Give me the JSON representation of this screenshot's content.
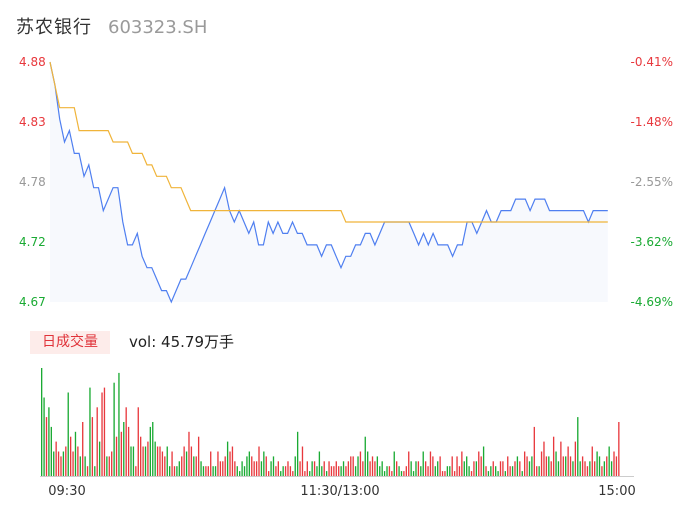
{
  "header": {
    "name": "苏农银行",
    "code": "603323.SH"
  },
  "volume_panel": {
    "tag": "日成交量",
    "label": "vol: 45.79万手"
  },
  "colors": {
    "price_line": "#4f7ff0",
    "avg_line": "#f0b43a",
    "up": "#e8383d",
    "down": "#1aaa33",
    "neutral": "#999999",
    "area_fill": "#f7f9fd"
  },
  "chart_data": [
    {
      "type": "line",
      "title": "",
      "ylim": [
        4.67,
        4.88
      ],
      "y_ticks": [
        "4.88",
        "4.83",
        "4.78",
        "4.72",
        "4.67"
      ],
      "y2_ticks": [
        "-0.41%",
        "-1.48%",
        "-2.55%",
        "-3.62%",
        "-4.69%"
      ],
      "x_ticks": [
        "09:30",
        "11:30/13:00",
        "15:00"
      ],
      "session_minutes": 240,
      "series": [
        {
          "key": "price",
          "points": [
            [
              0,
              4.88
            ],
            [
              2,
              4.86
            ],
            [
              4,
              4.83
            ],
            [
              6,
              4.81
            ],
            [
              8,
              4.82
            ],
            [
              10,
              4.8
            ],
            [
              12,
              4.8
            ],
            [
              14,
              4.78
            ],
            [
              16,
              4.79
            ],
            [
              18,
              4.77
            ],
            [
              20,
              4.77
            ],
            [
              22,
              4.75
            ],
            [
              24,
              4.76
            ],
            [
              26,
              4.77
            ],
            [
              28,
              4.77
            ],
            [
              30,
              4.74
            ],
            [
              32,
              4.72
            ],
            [
              34,
              4.72
            ],
            [
              36,
              4.73
            ],
            [
              38,
              4.71
            ],
            [
              40,
              4.7
            ],
            [
              42,
              4.7
            ],
            [
              44,
              4.69
            ],
            [
              46,
              4.68
            ],
            [
              48,
              4.68
            ],
            [
              50,
              4.67
            ],
            [
              52,
              4.68
            ],
            [
              54,
              4.69
            ],
            [
              56,
              4.69
            ],
            [
              58,
              4.7
            ],
            [
              60,
              4.71
            ],
            [
              62,
              4.72
            ],
            [
              64,
              4.73
            ],
            [
              66,
              4.74
            ],
            [
              68,
              4.75
            ],
            [
              70,
              4.76
            ],
            [
              72,
              4.77
            ],
            [
              74,
              4.75
            ],
            [
              76,
              4.74
            ],
            [
              78,
              4.75
            ],
            [
              80,
              4.74
            ],
            [
              82,
              4.73
            ],
            [
              84,
              4.74
            ],
            [
              86,
              4.72
            ],
            [
              88,
              4.72
            ],
            [
              90,
              4.74
            ],
            [
              92,
              4.73
            ],
            [
              94,
              4.74
            ],
            [
              96,
              4.73
            ],
            [
              98,
              4.73
            ],
            [
              100,
              4.74
            ],
            [
              102,
              4.73
            ],
            [
              104,
              4.73
            ],
            [
              106,
              4.72
            ],
            [
              108,
              4.72
            ],
            [
              110,
              4.72
            ],
            [
              112,
              4.71
            ],
            [
              114,
              4.72
            ],
            [
              116,
              4.72
            ],
            [
              118,
              4.71
            ],
            [
              120,
              4.7
            ],
            [
              122,
              4.71
            ],
            [
              124,
              4.71
            ],
            [
              126,
              4.72
            ],
            [
              128,
              4.72
            ],
            [
              130,
              4.73
            ],
            [
              132,
              4.73
            ],
            [
              134,
              4.72
            ],
            [
              136,
              4.73
            ],
            [
              138,
              4.74
            ],
            [
              140,
              4.74
            ],
            [
              142,
              4.74
            ],
            [
              144,
              4.74
            ],
            [
              146,
              4.74
            ],
            [
              148,
              4.74
            ],
            [
              150,
              4.73
            ],
            [
              152,
              4.72
            ],
            [
              154,
              4.73
            ],
            [
              156,
              4.72
            ],
            [
              158,
              4.73
            ],
            [
              160,
              4.72
            ],
            [
              162,
              4.72
            ],
            [
              164,
              4.72
            ],
            [
              166,
              4.71
            ],
            [
              168,
              4.72
            ],
            [
              170,
              4.72
            ],
            [
              172,
              4.74
            ],
            [
              174,
              4.74
            ],
            [
              176,
              4.73
            ],
            [
              178,
              4.74
            ],
            [
              180,
              4.75
            ],
            [
              182,
              4.74
            ],
            [
              184,
              4.74
            ],
            [
              186,
              4.75
            ],
            [
              188,
              4.75
            ],
            [
              190,
              4.75
            ],
            [
              192,
              4.76
            ],
            [
              194,
              4.76
            ],
            [
              196,
              4.76
            ],
            [
              198,
              4.75
            ],
            [
              200,
              4.76
            ],
            [
              202,
              4.76
            ],
            [
              204,
              4.76
            ],
            [
              206,
              4.75
            ],
            [
              208,
              4.75
            ],
            [
              210,
              4.75
            ],
            [
              212,
              4.75
            ],
            [
              214,
              4.75
            ],
            [
              216,
              4.75
            ],
            [
              218,
              4.75
            ],
            [
              220,
              4.75
            ],
            [
              222,
              4.74
            ],
            [
              224,
              4.75
            ],
            [
              226,
              4.75
            ],
            [
              228,
              4.75
            ],
            [
              230,
              4.75
            ]
          ]
        },
        {
          "key": "average",
          "points": [
            [
              0,
              4.88
            ],
            [
              4,
              4.84
            ],
            [
              10,
              4.84
            ],
            [
              12,
              4.82
            ],
            [
              24,
              4.82
            ],
            [
              26,
              4.81
            ],
            [
              32,
              4.81
            ],
            [
              34,
              4.8
            ],
            [
              38,
              4.8
            ],
            [
              40,
              4.79
            ],
            [
              42,
              4.79
            ],
            [
              44,
              4.78
            ],
            [
              48,
              4.78
            ],
            [
              50,
              4.77
            ],
            [
              54,
              4.77
            ],
            [
              56,
              4.76
            ],
            [
              58,
              4.75
            ],
            [
              120,
              4.75
            ],
            [
              122,
              4.74
            ],
            [
              150,
              4.74
            ],
            [
              230,
              4.74
            ]
          ]
        }
      ]
    },
    {
      "type": "bar",
      "title": "",
      "x_range": [
        0,
        240
      ],
      "values": [
        22,
        16,
        12,
        14,
        10,
        5,
        7,
        5,
        4,
        5,
        6,
        17,
        8,
        5,
        9,
        6,
        4,
        11,
        4,
        2,
        18,
        12,
        2,
        14,
        7,
        17,
        18,
        4,
        4,
        5,
        19,
        8,
        21,
        9,
        11,
        14,
        10,
        6,
        6,
        2,
        14,
        8,
        6,
        6,
        7,
        10,
        11,
        7,
        6,
        6,
        5,
        4,
        6,
        2,
        5,
        2,
        2,
        3,
        4,
        6,
        5,
        9,
        6,
        4,
        4,
        8,
        3,
        2,
        2,
        2,
        5,
        2,
        2,
        5,
        3,
        3,
        4,
        7,
        5,
        6,
        3,
        2,
        1,
        3,
        2,
        4,
        5,
        4,
        3,
        3,
        6,
        3,
        5,
        4,
        1,
        3,
        4,
        2,
        3,
        1,
        2,
        2,
        3,
        2,
        1,
        4,
        9,
        3,
        6,
        1,
        3,
        1,
        3,
        3,
        2,
        5,
        2,
        3,
        1,
        3,
        2,
        2,
        3,
        2,
        2,
        3,
        2,
        3,
        4,
        4,
        2,
        4,
        5,
        3,
        8,
        5,
        3,
        4,
        3,
        4,
        2,
        3,
        1,
        2,
        2,
        1,
        5,
        3,
        2,
        1,
        1,
        2,
        5,
        3,
        1,
        3,
        3,
        2,
        5,
        3,
        2,
        5,
        4,
        2,
        3,
        4,
        1,
        1,
        2,
        2,
        4,
        1,
        4,
        2,
        5,
        3,
        4,
        2,
        1,
        3,
        3,
        5,
        4,
        6,
        2,
        1,
        2,
        3,
        2,
        1,
        3,
        3,
        1,
        4,
        2,
        2,
        3,
        4,
        3,
        1,
        5,
        4,
        3,
        4,
        10,
        2,
        2,
        5,
        7,
        4,
        4,
        3,
        8,
        5,
        3,
        7,
        4,
        4,
        6,
        4,
        3,
        7,
        12,
        3,
        4,
        3,
        2,
        3,
        6,
        3,
        5,
        4,
        2,
        3,
        4,
        6,
        3,
        5,
        4,
        11
      ],
      "directions": [
        "down",
        "down",
        "up",
        "down",
        "down",
        "down",
        "up",
        "up",
        "up",
        "down",
        "up",
        "down",
        "up",
        "up",
        "down",
        "up",
        "down",
        "up",
        "down",
        "up",
        "down",
        "up",
        "down",
        "up",
        "down",
        "up",
        "up",
        "down",
        "up",
        "up",
        "down",
        "up",
        "down",
        "up",
        "down",
        "up",
        "up",
        "down",
        "down",
        "up",
        "up",
        "up",
        "up",
        "down",
        "up",
        "down",
        "down",
        "down",
        "up",
        "up",
        "up",
        "up",
        "down",
        "down",
        "up",
        "up",
        "down",
        "down",
        "up",
        "up",
        "down",
        "up",
        "up",
        "down",
        "up",
        "up",
        "down",
        "down",
        "up",
        "up",
        "up",
        "down",
        "down",
        "up",
        "up",
        "up",
        "up",
        "down",
        "up",
        "up",
        "up",
        "down",
        "down",
        "down",
        "down",
        "down",
        "down",
        "up",
        "up",
        "up",
        "up",
        "down",
        "down",
        "up",
        "up",
        "down",
        "down",
        "up",
        "up",
        "down",
        "down",
        "up",
        "up",
        "up",
        "up",
        "down",
        "down",
        "up",
        "up",
        "up",
        "up",
        "down",
        "down",
        "up",
        "down",
        "down",
        "down",
        "up",
        "down",
        "up",
        "up",
        "up",
        "up",
        "up",
        "down",
        "down",
        "up",
        "up",
        "up",
        "up",
        "down",
        "down",
        "up",
        "up",
        "down",
        "down",
        "up",
        "up",
        "up",
        "down",
        "down",
        "down",
        "down",
        "down",
        "up",
        "up",
        "down",
        "up",
        "down",
        "down",
        "up",
        "up",
        "up",
        "down",
        "down",
        "down",
        "up",
        "down",
        "down",
        "up",
        "up",
        "up",
        "up",
        "down",
        "down",
        "up",
        "up",
        "up",
        "down",
        "down",
        "up",
        "up",
        "up",
        "up",
        "up",
        "down",
        "down",
        "down",
        "up",
        "up",
        "down",
        "up",
        "up",
        "down",
        "up",
        "down",
        "down",
        "up",
        "down",
        "down",
        "up",
        "up",
        "down",
        "up",
        "up",
        "down",
        "up",
        "down",
        "up",
        "down",
        "up",
        "up",
        "down",
        "down",
        "up",
        "up",
        "down",
        "up",
        "up",
        "up",
        "down",
        "up",
        "up",
        "down",
        "down",
        "up",
        "up",
        "down",
        "up",
        "up",
        "down",
        "up",
        "down",
        "down",
        "up",
        "up",
        "up",
        "down",
        "up",
        "up",
        "down",
        "down",
        "up",
        "down",
        "up",
        "down",
        "down",
        "up",
        "up",
        "up",
        "down",
        "up",
        "down",
        "up",
        "down",
        "up",
        "up",
        "up",
        "up",
        "up",
        "down",
        "neutral"
      ]
    }
  ]
}
